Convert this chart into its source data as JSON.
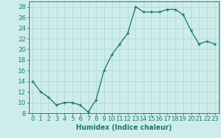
{
  "x": [
    0,
    1,
    2,
    3,
    4,
    5,
    6,
    7,
    8,
    9,
    10,
    11,
    12,
    13,
    14,
    15,
    16,
    17,
    18,
    19,
    20,
    21,
    22,
    23
  ],
  "y": [
    14,
    12,
    11,
    9.5,
    10,
    10,
    9.5,
    8.2,
    10.5,
    16,
    19,
    21,
    23,
    28,
    27,
    27,
    27,
    27.5,
    27.5,
    26.5,
    23.5,
    21,
    21.5,
    21
  ],
  "line_color": "#1a7a6e",
  "marker": "+",
  "marker_color": "#1a7a6e",
  "bg_color": "#ceecea",
  "grid_color": "#b0d8d5",
  "xlabel": "Humidex (Indice chaleur)",
  "xlim": [
    -0.5,
    23.5
  ],
  "ylim": [
    8,
    29
  ],
  "yticks": [
    8,
    10,
    12,
    14,
    16,
    18,
    20,
    22,
    24,
    26,
    28
  ],
  "xticks": [
    0,
    1,
    2,
    3,
    4,
    5,
    6,
    7,
    8,
    9,
    10,
    11,
    12,
    13,
    14,
    15,
    16,
    17,
    18,
    19,
    20,
    21,
    22,
    23
  ],
  "xlabel_fontsize": 7,
  "tick_fontsize": 6.5,
  "label_color": "#1a7a6e",
  "linewidth": 1.0,
  "markersize": 3.5
}
